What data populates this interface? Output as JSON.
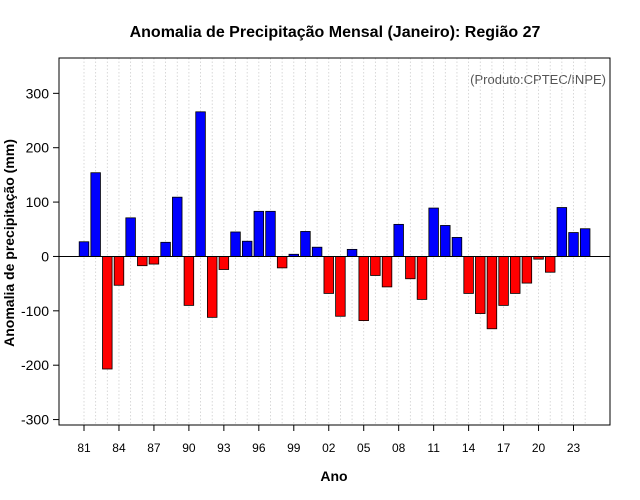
{
  "chart_data": {
    "type": "bar",
    "title": "Anomalia de Precipitação Mensal (Janeiro): Região 27",
    "xlabel": "Ano",
    "ylabel": "Anomalia de precipitação (mm)",
    "credit": "(Produto:CPTEC/INPE)",
    "ylim": [
      -310,
      365
    ],
    "yticks": [
      -300,
      -200,
      -100,
      0,
      100,
      200,
      300
    ],
    "xtick_labels": [
      "81",
      "84",
      "87",
      "90",
      "93",
      "96",
      "99",
      "02",
      "05",
      "08",
      "11",
      "14",
      "17",
      "20",
      "23"
    ],
    "xtick_step": 3,
    "positive_color": "#0000ff",
    "negative_color": "#ff0000",
    "categories": [
      "1981",
      "1982",
      "1983",
      "1984",
      "1985",
      "1986",
      "1987",
      "1988",
      "1989",
      "1990",
      "1991",
      "1992",
      "1993",
      "1994",
      "1995",
      "1996",
      "1997",
      "1998",
      "1999",
      "2000",
      "2001",
      "2002",
      "2003",
      "2004",
      "2005",
      "2006",
      "2007",
      "2008",
      "2009",
      "2010",
      "2011",
      "2012",
      "2013",
      "2014",
      "2015",
      "2016",
      "2017",
      "2018",
      "2019",
      "2020",
      "2021",
      "2022",
      "2023",
      "2024"
    ],
    "values": [
      27,
      154,
      -207,
      -53,
      71,
      -17,
      -14,
      26,
      109,
      -90,
      266,
      -112,
      -24,
      45,
      28,
      83,
      83,
      -21,
      4,
      46,
      17,
      -68,
      -110,
      13,
      -118,
      -35,
      -56,
      59,
      -41,
      -79,
      89,
      57,
      35,
      -68,
      -105,
      -133,
      -90,
      -68,
      -49,
      -5,
      -29,
      90,
      44,
      51
    ]
  }
}
